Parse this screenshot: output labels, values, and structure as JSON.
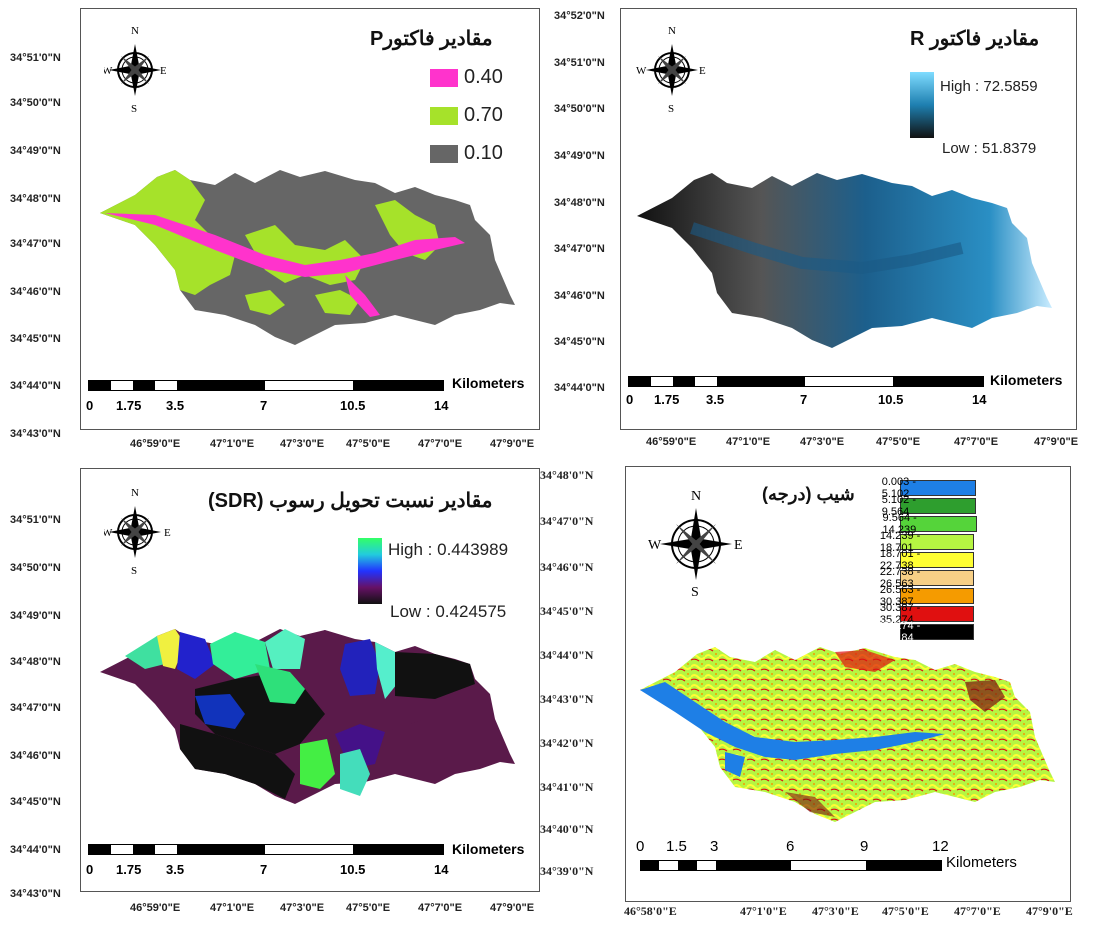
{
  "panels": {
    "p_factor": {
      "title": "مقادیر فاکتورP",
      "legend": [
        {
          "label": "0.40",
          "color": "#ff33cc"
        },
        {
          "label": "0.70",
          "color": "#a6e22a"
        },
        {
          "label": "0.10",
          "color": "#666666"
        }
      ],
      "lat_labels": [
        "34°51'0\"N",
        "34°50'0\"N",
        "34°49'0\"N",
        "34°48'0\"N",
        "34°47'0\"N",
        "34°46'0\"N",
        "34°45'0\"N",
        "34°44'0\"N",
        "34°43'0\"N"
      ],
      "lon_labels": [
        "46°59'0\"E",
        "47°1'0\"E",
        "47°3'0\"E",
        "47°5'0\"E",
        "47°7'0\"E",
        "47°9'0\"E"
      ],
      "scale_ticks": [
        "0",
        "1.75",
        "3.5",
        "7",
        "10.5",
        "14"
      ],
      "scale_unit": "Kilometers"
    },
    "r_factor": {
      "title": "مقادیر فاکتور R",
      "high": "High : 72.5859",
      "low": "Low : 51.8379",
      "lat_labels": [
        "34°52'0\"N",
        "34°51'0\"N",
        "34°50'0\"N",
        "34°49'0\"N",
        "34°48'0\"N",
        "34°47'0\"N",
        "34°46'0\"N",
        "34°45'0\"N",
        "34°44'0\"N"
      ],
      "lon_labels": [
        "46°59'0\"E",
        "47°1'0\"E",
        "47°3'0\"E",
        "47°5'0\"E",
        "47°7'0\"E",
        "47°9'0\"E"
      ],
      "scale_ticks": [
        "0",
        "1.75",
        "3.5",
        "7",
        "10.5",
        "14"
      ],
      "scale_unit": "Kilometers"
    },
    "sdr": {
      "title": "مقادیر نسبت تحویل رسوب (SDR)",
      "high": "High : 0.443989",
      "low": "Low : 0.424575",
      "lat_labels": [
        "34°51'0\"N",
        "34°50'0\"N",
        "34°49'0\"N",
        "34°48'0\"N",
        "34°47'0\"N",
        "34°46'0\"N",
        "34°45'0\"N",
        "34°44'0\"N",
        "34°43'0\"N"
      ],
      "lon_labels": [
        "46°59'0\"E",
        "47°1'0\"E",
        "47°3'0\"E",
        "47°5'0\"E",
        "47°7'0\"E",
        "47°9'0\"E"
      ],
      "scale_ticks": [
        "0",
        "1.75",
        "3.5",
        "7",
        "10.5",
        "14"
      ],
      "scale_unit": "Kilometers"
    },
    "slope": {
      "title": "شیب (درجه)",
      "legend": [
        {
          "label": "0.003 - 5.102",
          "color": "#1e7fe6"
        },
        {
          "label": "5.102 - 9.564",
          "color": "#2e9e2e"
        },
        {
          "label": "9.564 - 14.239",
          "color": "#55d43a"
        },
        {
          "label": "14.239 - 18.701",
          "color": "#b6f542"
        },
        {
          "label": "18.701 - 22.738",
          "color": "#ffff33"
        },
        {
          "label": "22.738 - 26.563",
          "color": "#f7cf86"
        },
        {
          "label": "26.563 - 30.387",
          "color": "#f59b00"
        },
        {
          "label": "30.387 - 35.274",
          "color": "#e01010"
        },
        {
          "label": "35.274 - 54.184",
          "color": "#000000"
        }
      ],
      "lat_labels": [
        "34°48'0\"N",
        "34°47'0\"N",
        "34°46'0\"N",
        "34°45'0\"N",
        "34°44'0\"N",
        "34°43'0\"N",
        "34°42'0\"N",
        "34°41'0\"N",
        "34°40'0\"N",
        "34°39'0\"N"
      ],
      "lon_labels": [
        "46°58'0\"E",
        "47°1'0\"E",
        "47°3'0\"E",
        "47°5'0\"E",
        "47°7'0\"E",
        "47°9'0\"E"
      ],
      "scale_ticks": [
        "0",
        "1.5",
        "3",
        "6",
        "9",
        "12"
      ],
      "scale_unit": "Kilometers"
    }
  },
  "compass": {
    "n": "N",
    "s": "S",
    "e": "E",
    "w": "W"
  }
}
